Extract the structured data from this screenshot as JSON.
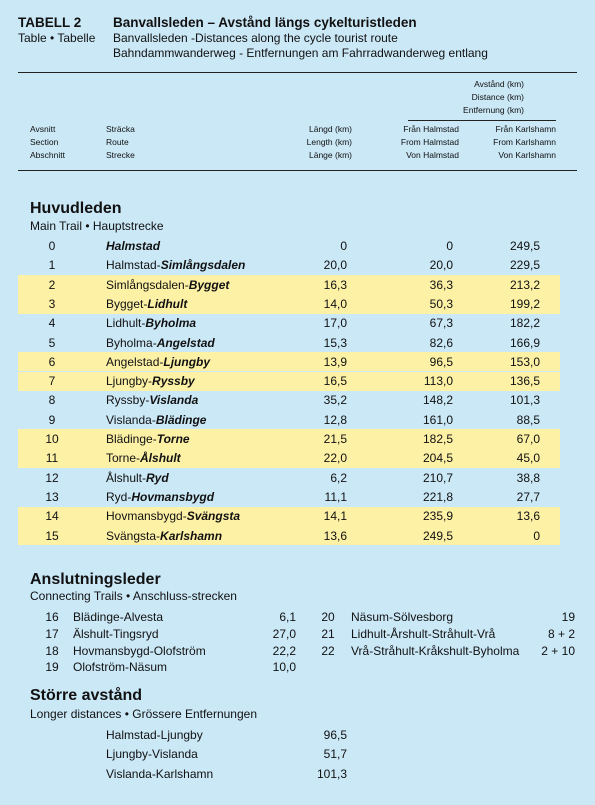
{
  "header": {
    "label": "TABELL 2",
    "title": "Banvallsleden – Avstånd längs cykelturistleden",
    "label_translation": "Table • Tabelle",
    "subtitle_en": "Banvallsleden -Distances along the cycle tourist route",
    "subtitle_de": "Bahndammwanderweg - Entfernungen am Fahrradwanderweg entlang"
  },
  "columns": {
    "distance": [
      "Avstånd (km)",
      "Distance (km)",
      "Entfernung (km)"
    ],
    "section": [
      "Avsnitt",
      "Section",
      "Abschnitt"
    ],
    "route": [
      "Sträcka",
      "Route",
      "Strecke"
    ],
    "length": [
      "Längd (km)",
      "Length (km)",
      "Länge (km)"
    ],
    "from_halmstad": [
      "Från Halmstad",
      "From Halmstad",
      "Von Halmstad"
    ],
    "from_karlshamn": [
      "Från Karlshamn",
      "From Karlshamn",
      "Von Karlshamn"
    ]
  },
  "main": {
    "title": "Huvudleden",
    "subtitle": "Main Trail • Hauptstrecke",
    "highlight_color": "#fdf1a6",
    "rows": [
      {
        "section": "0",
        "route_end": "Halmstad",
        "length": "0",
        "from_halmstad": "0",
        "from_karlshamn": "249,5"
      },
      {
        "section": "1",
        "route_start": "Halmstad-",
        "route_end": "Simlångsdalen",
        "length": "20,0",
        "from_halmstad": "20,0",
        "from_karlshamn": "229,5"
      },
      {
        "section": "2",
        "route_start": "Simlångsdalen-",
        "route_end": "Bygget",
        "length": "16,3",
        "from_halmstad": "36,3",
        "from_karlshamn": "213,2",
        "highlight": true
      },
      {
        "section": "3",
        "route_start": "Bygget-",
        "route_end": "Lidhult",
        "length": "14,0",
        "from_halmstad": "50,3",
        "from_karlshamn": "199,2",
        "highlight": true
      },
      {
        "section": "4",
        "route_start": "Lidhult-",
        "route_end": "Byholma",
        "length": "17,0",
        "from_halmstad": "67,3",
        "from_karlshamn": "182,2"
      },
      {
        "section": "5",
        "route_start": "Byholma-",
        "route_end": "Angelstad",
        "length": "15,3",
        "from_halmstad": "82,6",
        "from_karlshamn": "166,9"
      },
      {
        "section": "6",
        "route_start": "Angelstad-",
        "route_end": "Ljungby",
        "length": "13,9",
        "from_halmstad": "96,5",
        "from_karlshamn": "153,0",
        "highlight": true
      },
      {
        "section": "7",
        "route_start": "Ljungby-",
        "route_end": "Ryssby",
        "length": "16,5",
        "from_halmstad": "113,0",
        "from_karlshamn": "136,5",
        "highlight": true
      },
      {
        "section": "8",
        "route_start": "Ryssby-",
        "route_end": "Vislanda",
        "length": "35,2",
        "from_halmstad": "148,2",
        "from_karlshamn": "101,3"
      },
      {
        "section": "9",
        "route_start": "Vislanda-",
        "route_end": "Blädinge",
        "length": "12,8",
        "from_halmstad": "161,0",
        "from_karlshamn": "88,5"
      },
      {
        "section": "10",
        "route_start": "Blädinge-",
        "route_end": "Torne",
        "length": "21,5",
        "from_halmstad": "182,5",
        "from_karlshamn": "67,0",
        "highlight": true
      },
      {
        "section": "11",
        "route_start": "Torne-",
        "route_end": "Ålshult",
        "length": "22,0",
        "from_halmstad": "204,5",
        "from_karlshamn": "45,0",
        "highlight": true
      },
      {
        "section": "12",
        "route_start": "Ålshult-",
        "route_end": "Ryd",
        "length": "6,2",
        "from_halmstad": "210,7",
        "from_karlshamn": "38,8"
      },
      {
        "section": "13",
        "route_start": "Ryd-",
        "route_end": "Hovmansbygd",
        "length": "11,1",
        "from_halmstad": "221,8",
        "from_karlshamn": "27,7"
      },
      {
        "section": "14",
        "route_start": "Hovmansbygd-",
        "route_end": "Svängsta",
        "length": "14,1",
        "from_halmstad": "235,9",
        "from_karlshamn": "13,6",
        "highlight": true
      },
      {
        "section": "15",
        "route_start": "Svängsta-",
        "route_end": "Karlshamn",
        "length": "13,6",
        "from_halmstad": "249,5",
        "from_karlshamn": "0",
        "highlight": true
      }
    ]
  },
  "connecting": {
    "title": "Anslutningsleder",
    "subtitle": "Connecting Trails • Anschluss-strecken",
    "left": [
      {
        "section": "16",
        "route": "Blädinge-Alvesta",
        "length": "6,1"
      },
      {
        "section": "17",
        "route": "Älshult-Tingsryd",
        "length": "27,0"
      },
      {
        "section": "18",
        "route": "Hovmansbygd-Olofström",
        "length": "22,2"
      },
      {
        "section": "19",
        "route": "Olofström-Näsum",
        "length": "10,0"
      }
    ],
    "right": [
      {
        "section": "20",
        "route": "Näsum-Sölvesborg",
        "length": "19"
      },
      {
        "section": "21",
        "route": "Lidhult-Årshult-Stråhult-Vrå",
        "length": "8 + 2"
      },
      {
        "section": "22",
        "route": "Vrå-Stråhult-Kråkshult-Byholma",
        "length": "2 + 10"
      }
    ]
  },
  "longer": {
    "title": "Större avstånd",
    "subtitle": "Longer distances • Grössere Entfernungen",
    "rows": [
      {
        "route": "Halmstad-Ljungby",
        "length": "96,5"
      },
      {
        "route": "Ljungby-Vislanda",
        "length": "51,7"
      },
      {
        "route": "Vislanda-Karlshamn",
        "length": "101,3"
      }
    ]
  }
}
